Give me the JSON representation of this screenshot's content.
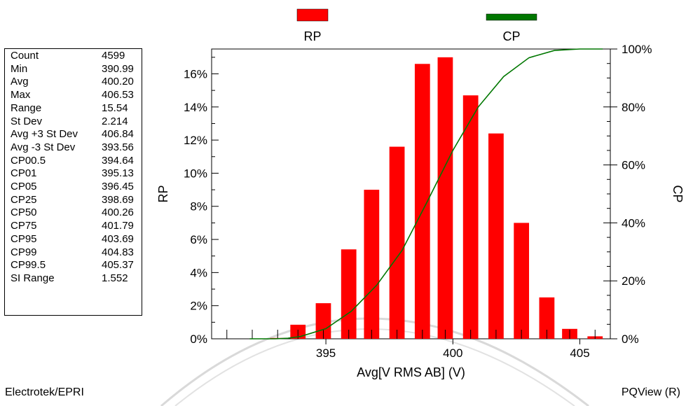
{
  "title_partial": "",
  "stats": [
    {
      "label": "Count",
      "value": "4599"
    },
    {
      "label": "Min",
      "value": "390.99"
    },
    {
      "label": "Avg",
      "value": "400.20"
    },
    {
      "label": "Max",
      "value": "406.53"
    },
    {
      "label": "Range",
      "value": "15.54"
    },
    {
      "label": "St Dev",
      "value": "2.214"
    },
    {
      "label": "Avg +3 St Dev",
      "value": "406.84"
    },
    {
      "label": "Avg -3 St Dev",
      "value": "393.56"
    },
    {
      "label": "CP00.5",
      "value": "394.64"
    },
    {
      "label": "CP01",
      "value": "395.13"
    },
    {
      "label": "CP05",
      "value": "396.45"
    },
    {
      "label": "CP25",
      "value": "398.69"
    },
    {
      "label": "CP50",
      "value": "400.26"
    },
    {
      "label": "CP75",
      "value": "401.79"
    },
    {
      "label": "CP95",
      "value": "403.69"
    },
    {
      "label": "CP99",
      "value": "404.83"
    },
    {
      "label": "CP99.5",
      "value": "405.37"
    },
    {
      "label": "SI Range",
      "value": "1.552"
    }
  ],
  "footer": {
    "left": "Electrotek/EPRI",
    "right": "PQView (R)"
  },
  "colors": {
    "rp": "#ff0000",
    "cp": "#007700"
  },
  "chart_data": {
    "type": "bar",
    "xlabel": "Avg[V RMS AB] (V)",
    "ylabel": "RP",
    "y2label": "CP",
    "xlim": [
      390.5,
      406.2
    ],
    "ylim": [
      0,
      17.5
    ],
    "y2lim": [
      0,
      100
    ],
    "xticks": [
      395,
      400,
      405
    ],
    "yticks": [
      0,
      2,
      4,
      6,
      8,
      10,
      12,
      14,
      16
    ],
    "y2ticks": [
      0,
      20,
      40,
      60,
      80,
      100
    ],
    "bar_width": 0.6,
    "legend": [
      {
        "name": "RP",
        "color": "#ff0000",
        "kind": "bar"
      },
      {
        "name": "CP",
        "color": "#007700",
        "kind": "line"
      }
    ],
    "series": [
      {
        "name": "RP",
        "type": "bar",
        "x": [
          391.1,
          392.1,
          393.1,
          393.9,
          394.9,
          395.9,
          396.8,
          397.8,
          398.8,
          399.7,
          400.7,
          401.7,
          402.7,
          403.7,
          404.6,
          405.6
        ],
        "values": [
          0,
          0,
          0.05,
          0.85,
          2.15,
          5.4,
          9.0,
          11.6,
          16.6,
          17.0,
          14.7,
          12.4,
          7.0,
          2.5,
          0.6,
          0.15
        ]
      },
      {
        "name": "CP",
        "type": "line",
        "x": [
          392.0,
          393.0,
          393.5,
          394.0,
          395.0,
          396.0,
          397.0,
          398.0,
          399.0,
          400.0,
          401.0,
          402.0,
          403.0,
          404.0,
          405.0,
          405.9
        ],
        "values": [
          0,
          0,
          0.2,
          0.8,
          3.5,
          9.5,
          18.5,
          30.5,
          47.5,
          65.0,
          80.0,
          90.5,
          97.0,
          99.5,
          100,
          100
        ]
      }
    ]
  }
}
